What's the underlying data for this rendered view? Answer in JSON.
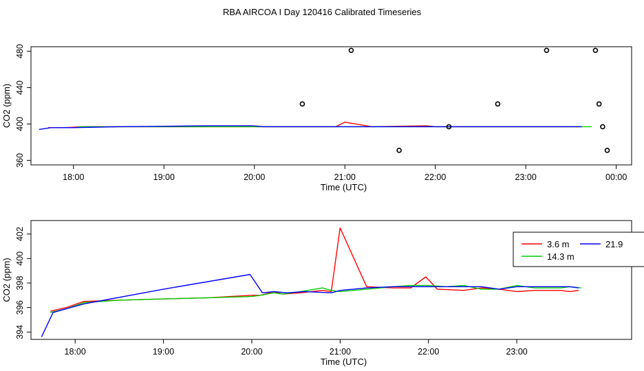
{
  "title": "RBA AIRCOA I  Day 120416  Calibrated Timeseries",
  "chart_data": [
    {
      "type": "line",
      "xlabel": "Time (UTC)",
      "ylabel": "CO2 (ppm)",
      "xlim": [
        17.53,
        24.17
      ],
      "ylim": [
        355,
        485
      ],
      "x_ticks": [
        {
          "v": 18,
          "label": "18:00"
        },
        {
          "v": 19,
          "label": "19:00"
        },
        {
          "v": 20,
          "label": "20:00"
        },
        {
          "v": 21,
          "label": "21:00"
        },
        {
          "v": 22,
          "label": "22:00"
        },
        {
          "v": 23,
          "label": "23:00"
        },
        {
          "v": 24,
          "label": "00:00"
        }
      ],
      "y_ticks": [
        {
          "v": 360,
          "label": "360"
        },
        {
          "v": 400,
          "label": "400"
        },
        {
          "v": 440,
          "label": "440"
        },
        {
          "v": 480,
          "label": "480"
        }
      ],
      "series": [
        {
          "color": "#ff0000",
          "x": [
            17.72,
            17.9,
            18.1,
            18.5,
            19.0,
            19.5,
            20.0,
            20.1,
            20.4,
            20.9,
            21.0,
            21.3,
            21.9,
            22.0,
            22.5,
            23.0,
            23.6
          ],
          "y": [
            396,
            396,
            397,
            397,
            397,
            397,
            397,
            397,
            397,
            397,
            402,
            397,
            398,
            397,
            397,
            397,
            397
          ]
        },
        {
          "color": "#00cc00",
          "x": [
            18.05,
            18.5,
            19.0,
            19.5,
            20.0,
            20.5,
            21.0,
            21.5,
            22.0,
            22.5,
            23.0,
            23.5,
            23.73
          ],
          "y": [
            397,
            397,
            397,
            397,
            397,
            397,
            397,
            397,
            397,
            397,
            397,
            397,
            397
          ]
        },
        {
          "color": "#0000ff",
          "x": [
            17.62,
            17.75,
            18.0,
            18.5,
            19.0,
            19.5,
            19.98,
            20.1,
            20.5,
            21.0,
            21.5,
            22.0,
            22.5,
            23.0,
            23.62
          ],
          "y": [
            394,
            396,
            396,
            397,
            397.5,
            398,
            398,
            397,
            397,
            397,
            397,
            397,
            397,
            397,
            397
          ]
        }
      ],
      "outliers": {
        "x": [
          20.53,
          21.07,
          21.6,
          22.15,
          22.69,
          23.23,
          23.77,
          23.81,
          23.85,
          23.9
        ],
        "y": [
          422,
          481,
          371,
          397,
          422,
          481,
          481,
          422,
          397,
          371
        ]
      }
    },
    {
      "type": "line",
      "xlabel": "Time (UTC)",
      "ylabel": "CO2 (ppm)",
      "xlim": [
        17.5,
        24.3
      ],
      "ylim": [
        393.4,
        403.1
      ],
      "x_ticks": [
        {
          "v": 18,
          "label": "18:00"
        },
        {
          "v": 19,
          "label": "19:00"
        },
        {
          "v": 20,
          "label": "20:00"
        },
        {
          "v": 21,
          "label": "21:00"
        },
        {
          "v": 22,
          "label": "22:00"
        },
        {
          "v": 23,
          "label": "23:00"
        }
      ],
      "y_ticks": [
        {
          "v": 394,
          "label": "394"
        },
        {
          "v": 396,
          "label": "396"
        },
        {
          "v": 398,
          "label": "398"
        },
        {
          "v": 400,
          "label": "400"
        },
        {
          "v": 402,
          "label": "402"
        }
      ],
      "legend": {
        "placement": "top-right",
        "entries": [
          {
            "label": "3.6 m",
            "color": "#ff0000"
          },
          {
            "label": "21.9",
            "color": "#0000ff"
          },
          {
            "label": "14.3 m",
            "color": "#00cc00"
          }
        ]
      },
      "series": [
        {
          "name": "3.6 m",
          "color": "#ff0000",
          "x": [
            17.72,
            17.9,
            18.1,
            18.5,
            19.0,
            19.5,
            20.0,
            20.1,
            20.25,
            20.35,
            20.55,
            20.8,
            20.9,
            21.0,
            21.3,
            21.6,
            21.8,
            21.97,
            22.1,
            22.4,
            22.6,
            22.8,
            23.0,
            23.2,
            23.5,
            23.6,
            23.7
          ],
          "y": [
            395.7,
            396.0,
            396.5,
            396.6,
            396.7,
            396.8,
            397.0,
            397.0,
            397.3,
            397.1,
            397.2,
            397.4,
            397.3,
            402.5,
            397.7,
            397.6,
            397.6,
            398.5,
            397.5,
            397.4,
            397.6,
            397.5,
            397.3,
            397.4,
            397.4,
            397.3,
            397.4
          ]
        },
        {
          "name": "14.3 m",
          "color": "#00cc00",
          "x": [
            17.72,
            17.9,
            18.1,
            18.5,
            19.0,
            19.5,
            20.0,
            20.1,
            20.25,
            20.35,
            20.55,
            20.8,
            20.9,
            21.0,
            21.3,
            21.6,
            21.8,
            22.0,
            22.2,
            22.4,
            22.6,
            22.8,
            23.0,
            23.2,
            23.5,
            23.6,
            23.73
          ],
          "y": [
            395.6,
            395.9,
            396.4,
            396.6,
            396.7,
            396.8,
            396.9,
            397.0,
            397.2,
            397.1,
            397.3,
            397.6,
            397.4,
            397.3,
            397.5,
            397.7,
            397.8,
            397.8,
            397.7,
            397.8,
            397.5,
            397.5,
            397.8,
            397.6,
            397.6,
            397.7,
            397.6
          ]
        },
        {
          "name": "21.9",
          "color": "#0000ff",
          "x": [
            17.62,
            17.75,
            18.1,
            19.0,
            19.98,
            20.12,
            20.25,
            20.4,
            20.6,
            20.9,
            21.0,
            21.3,
            21.6,
            22.0,
            22.3,
            22.6,
            22.8,
            23.0,
            23.3,
            23.6,
            23.7
          ],
          "y": [
            393.6,
            395.6,
            396.3,
            397.5,
            398.7,
            397.2,
            397.3,
            397.2,
            397.3,
            397.2,
            397.4,
            397.6,
            397.7,
            397.7,
            397.7,
            397.7,
            397.5,
            397.7,
            397.7,
            397.7,
            397.6
          ]
        }
      ]
    }
  ]
}
